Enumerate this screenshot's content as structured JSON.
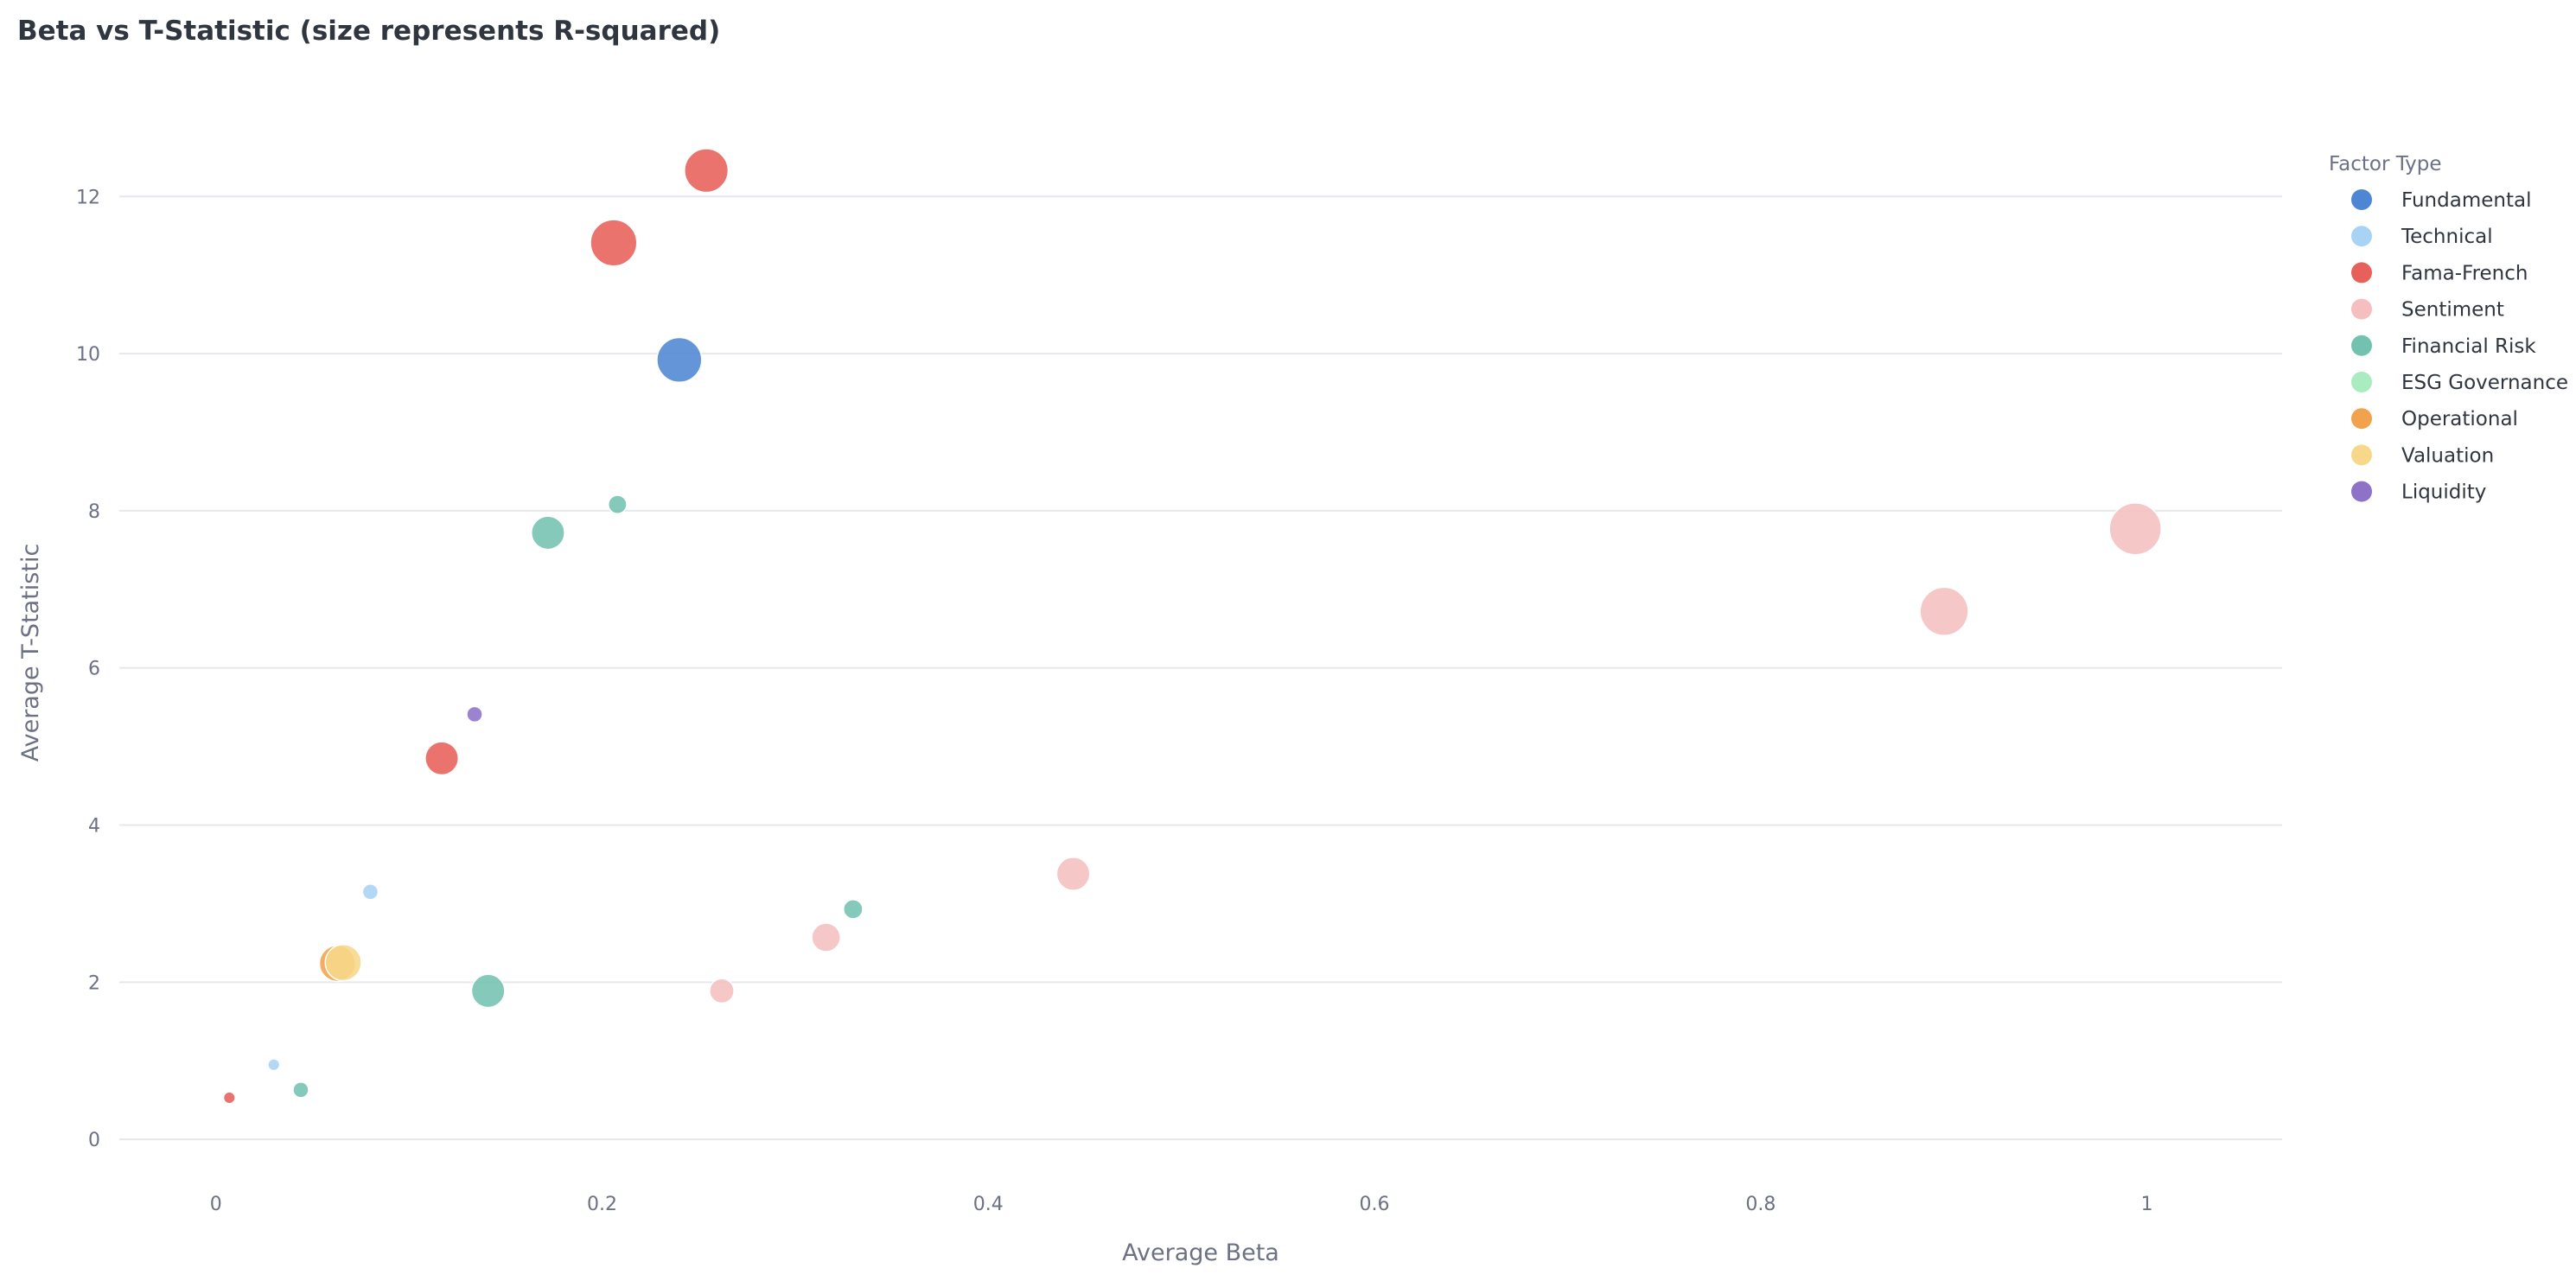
{
  "chart_data": {
    "type": "scatter",
    "title": "Beta vs T-Statistic (size represents R-squared)",
    "xlabel": "Average Beta",
    "ylabel": "Average T-Statistic",
    "xlim": [
      -0.05,
      1.07
    ],
    "ylim": [
      -0.35,
      13.4
    ],
    "x_ticks": [
      0,
      0.2,
      0.4,
      0.6,
      0.8,
      1
    ],
    "x_tick_labels": [
      "0",
      "0.2",
      "0.4",
      "0.6",
      "0.8",
      "1"
    ],
    "y_ticks": [
      0,
      2,
      4,
      6,
      8,
      10,
      12
    ],
    "y_tick_labels": [
      "0",
      "2",
      "4",
      "6",
      "8",
      "10",
      "12"
    ],
    "grid": true,
    "size_encoding": "R-squared",
    "legend": {
      "title": "Factor Type",
      "placement": "right",
      "entries": [
        {
          "name": "Fundamental",
          "color": "#4f86d4"
        },
        {
          "name": "Technical",
          "color": "#a9d3f5"
        },
        {
          "name": "Fama-French",
          "color": "#e8605a"
        },
        {
          "name": "Sentiment",
          "color": "#f5bfbf"
        },
        {
          "name": "Financial Risk",
          "color": "#73c2af"
        },
        {
          "name": "ESG Governance",
          "color": "#a9ecc0"
        },
        {
          "name": "Operational",
          "color": "#f2a24c"
        },
        {
          "name": "Valuation",
          "color": "#f7d88a"
        },
        {
          "name": "Liquidity",
          "color": "#8e72c8"
        }
      ]
    },
    "series": [
      {
        "name": "Fundamental",
        "color": "#4f86d4",
        "points": [
          {
            "x": 0.24,
            "y": 9.92,
            "r2": 0.72
          }
        ]
      },
      {
        "name": "Technical",
        "color": "#a9d3f5",
        "points": [
          {
            "x": 0.08,
            "y": 3.15,
            "r2": 0.05
          },
          {
            "x": 0.03,
            "y": 0.95,
            "r2": 0.02
          }
        ]
      },
      {
        "name": "Fama-French",
        "color": "#e8605a",
        "points": [
          {
            "x": 0.254,
            "y": 12.33,
            "r2": 0.68
          },
          {
            "x": 0.206,
            "y": 11.41,
            "r2": 0.78
          },
          {
            "x": 0.117,
            "y": 4.85,
            "r2": 0.36
          },
          {
            "x": 0.007,
            "y": 0.53,
            "r2": 0.02
          }
        ]
      },
      {
        "name": "Sentiment",
        "color": "#f5bfbf",
        "points": [
          {
            "x": 0.994,
            "y": 7.77,
            "r2": 1.0
          },
          {
            "x": 0.895,
            "y": 6.72,
            "r2": 0.85
          },
          {
            "x": 0.444,
            "y": 3.38,
            "r2": 0.36
          },
          {
            "x": 0.316,
            "y": 2.57,
            "r2": 0.25
          },
          {
            "x": 0.262,
            "y": 1.89,
            "r2": 0.17
          }
        ]
      },
      {
        "name": "Financial Risk",
        "color": "#73c2af",
        "points": [
          {
            "x": 0.208,
            "y": 8.08,
            "r2": 0.08
          },
          {
            "x": 0.172,
            "y": 7.72,
            "r2": 0.36
          },
          {
            "x": 0.141,
            "y": 1.89,
            "r2": 0.36
          },
          {
            "x": 0.33,
            "y": 2.93,
            "r2": 0.09
          },
          {
            "x": 0.044,
            "y": 0.63,
            "r2": 0.05
          }
        ]
      },
      {
        "name": "ESG Governance",
        "color": "#a9ecc0",
        "points": []
      },
      {
        "name": "Operational",
        "color": "#f2a24c",
        "points": [
          {
            "x": 0.063,
            "y": 2.24,
            "r2": 0.44
          }
        ]
      },
      {
        "name": "Valuation",
        "color": "#f7d88a",
        "points": [
          {
            "x": 0.066,
            "y": 2.25,
            "r2": 0.44
          }
        ]
      },
      {
        "name": "Liquidity",
        "color": "#8e72c8",
        "points": [
          {
            "x": 0.134,
            "y": 5.41,
            "r2": 0.05
          }
        ]
      }
    ]
  }
}
